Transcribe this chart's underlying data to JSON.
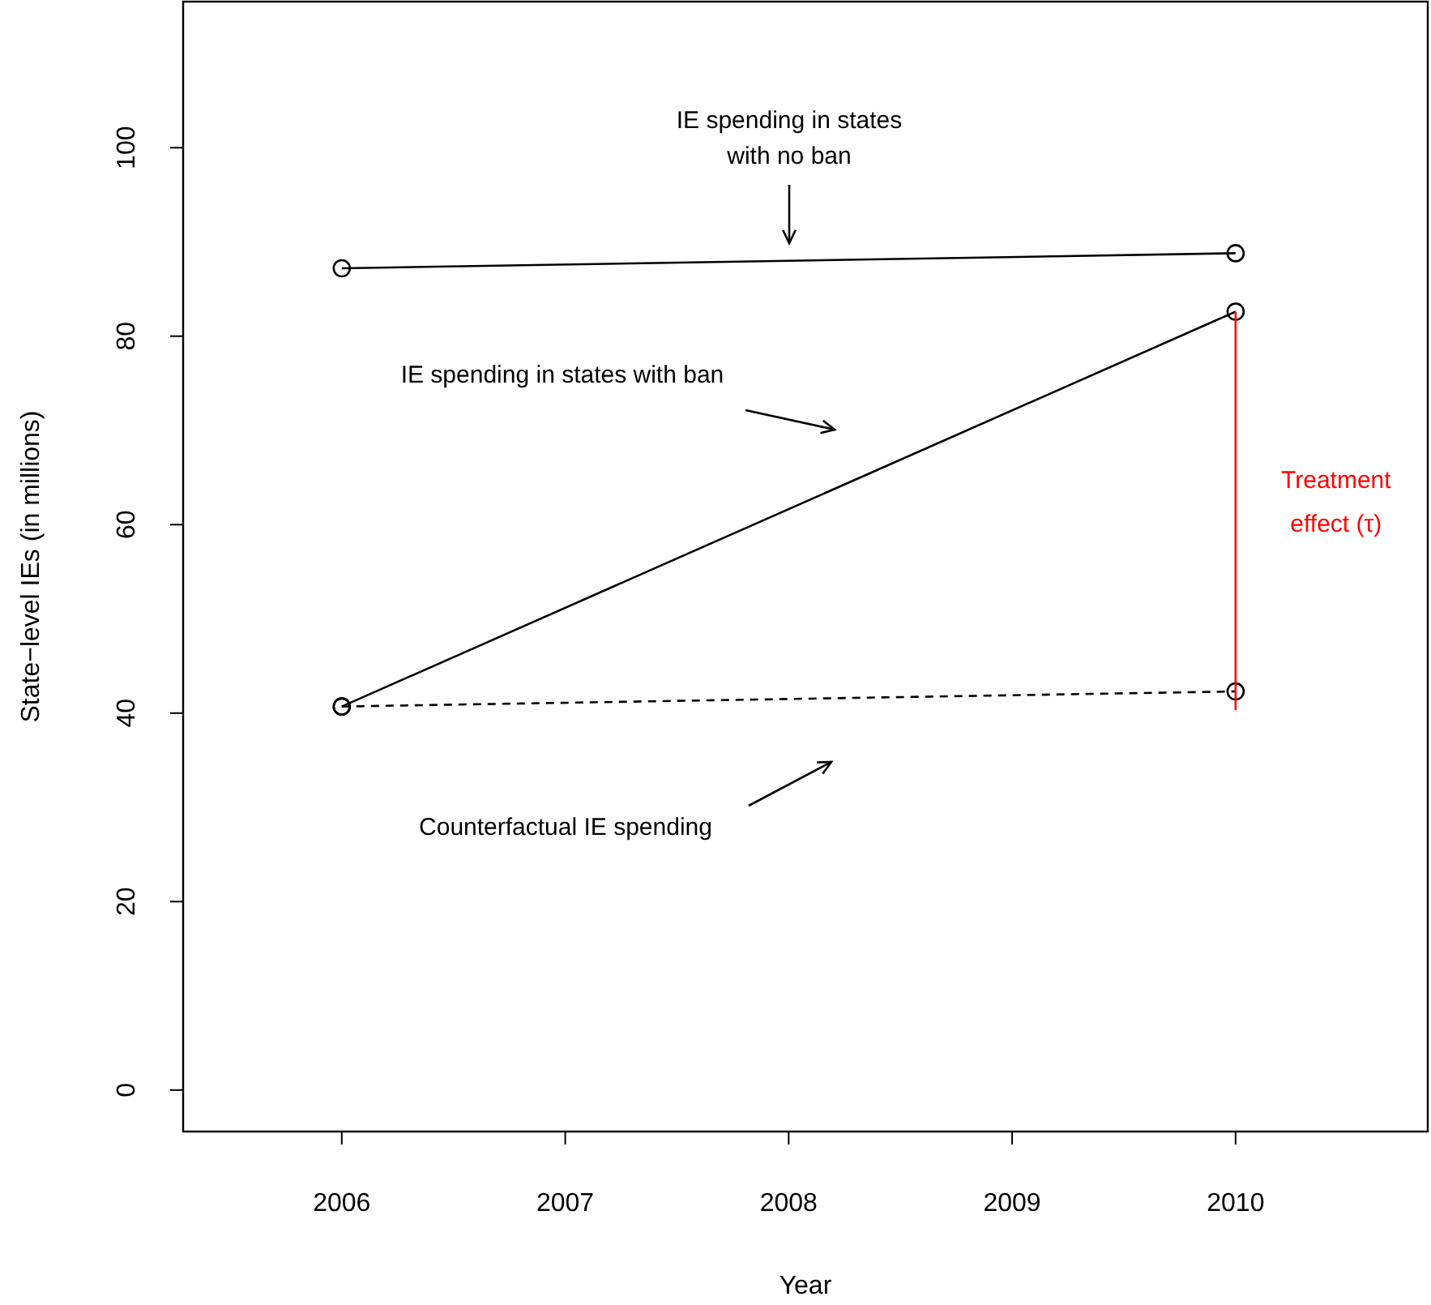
{
  "chart_data": {
    "type": "line",
    "xlabel": "Year",
    "ylabel": "State−level IEs (in millions)",
    "xlim": [
      2005.29,
      2010.86
    ],
    "ylim": [
      -4.4,
      115.5
    ],
    "xticks": [
      2006,
      2007,
      2008,
      2009,
      2010
    ],
    "yticks": [
      0,
      20,
      40,
      60,
      80,
      100
    ],
    "grid": false,
    "marker": "circle",
    "line_style": "solid",
    "x": [
      2006,
      2010
    ],
    "series": [
      {
        "values": [
          87.2,
          88.8
        ],
        "color": "#000000"
      },
      {
        "values": [
          40.7,
          82.6
        ],
        "color": "#000000"
      },
      {
        "values": [
          40.7,
          42.3
        ],
        "color": "#000000",
        "line_style": "dashed"
      },
      {
        "x": [
          2010,
          2010
        ],
        "values": [
          40.3,
          82.6
        ],
        "color": "#ff0000",
        "marker": "none",
        "name": "Treatment effect (τ)"
      }
    ],
    "annotations": [
      "IE spending in states\nwith no ban",
      "IE spending in states with ban",
      "Counterfactual IE spending"
    ]
  }
}
